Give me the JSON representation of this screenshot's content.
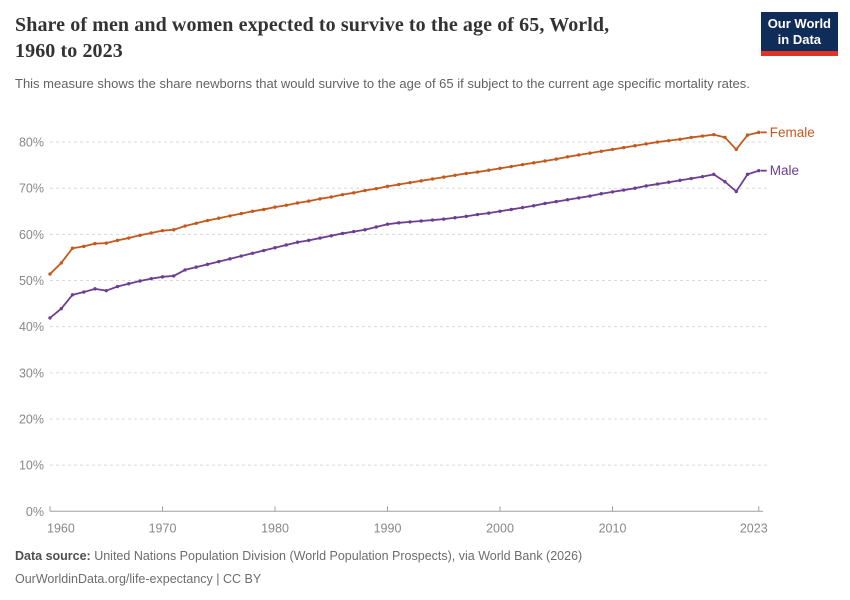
{
  "header": {
    "title_line1": "Share of men and women expected to survive to the age of 65, World,",
    "title_line2": "1960 to 2023",
    "subtitle": "This measure shows the share newborns that would survive to the age of 65 if subject to the current age specific mortality rates.",
    "logo": {
      "line1": "Our World",
      "line2": "in Data",
      "bg_color": "#102d59",
      "stripe_color": "#e03226"
    }
  },
  "footer": {
    "source_label": "Data source:",
    "source_text": " United Nations Population Division (World Population Prospects), via World Bank (2026)",
    "link_text": "OurWorldinData.org/life-expectancy",
    "license_text": " | CC BY"
  },
  "chart_data": {
    "type": "line",
    "title": "Share of men and women expected to survive to the age of 65, World, 1960 to 2023",
    "xlabel": "",
    "ylabel": "",
    "xlim": [
      1960,
      2023
    ],
    "ylim": [
      0,
      80
    ],
    "grid": "horizontal-dashed",
    "legend_position": "end-of-line-labels",
    "xticks": [
      [
        1960,
        "1960"
      ],
      [
        1970,
        "1970"
      ],
      [
        1980,
        "1980"
      ],
      [
        1990,
        "1990"
      ],
      [
        2000,
        "2000"
      ],
      [
        2010,
        "2010"
      ],
      [
        2023,
        "2023"
      ]
    ],
    "yticks": [
      [
        0,
        "0%"
      ],
      [
        10,
        "10%"
      ],
      [
        20,
        "20%"
      ],
      [
        30,
        "30%"
      ],
      [
        40,
        "40%"
      ],
      [
        50,
        "50%"
      ],
      [
        60,
        "60%"
      ],
      [
        70,
        "70%"
      ],
      [
        80,
        "80%"
      ]
    ],
    "x": [
      1960,
      1961,
      1962,
      1963,
      1964,
      1965,
      1966,
      1967,
      1968,
      1969,
      1970,
      1971,
      1972,
      1973,
      1974,
      1975,
      1976,
      1977,
      1978,
      1979,
      1980,
      1981,
      1982,
      1983,
      1984,
      1985,
      1986,
      1987,
      1988,
      1989,
      1990,
      1991,
      1992,
      1993,
      1994,
      1995,
      1996,
      1997,
      1998,
      1999,
      2000,
      2001,
      2002,
      2003,
      2004,
      2005,
      2006,
      2007,
      2008,
      2009,
      2010,
      2011,
      2012,
      2013,
      2014,
      2015,
      2016,
      2017,
      2018,
      2019,
      2020,
      2021,
      2022,
      2023
    ],
    "series": [
      {
        "name": "Female",
        "color": "#c4591d",
        "values": [
          51.4,
          53.8,
          57.0,
          57.4,
          58.0,
          58.1,
          58.7,
          59.2,
          59.8,
          60.3,
          60.8,
          61.0,
          61.8,
          62.4,
          63.0,
          63.5,
          64.0,
          64.5,
          65.0,
          65.4,
          65.9,
          66.3,
          66.8,
          67.2,
          67.7,
          68.1,
          68.6,
          69.0,
          69.5,
          69.9,
          70.4,
          70.8,
          71.2,
          71.6,
          72.0,
          72.4,
          72.8,
          73.2,
          73.5,
          73.9,
          74.3,
          74.7,
          75.1,
          75.5,
          75.9,
          76.3,
          76.8,
          77.2,
          77.6,
          78.0,
          78.4,
          78.8,
          79.2,
          79.6,
          80.0,
          80.3,
          80.6,
          81.0,
          81.3,
          81.6,
          81.0,
          78.4,
          81.5,
          82.1
        ]
      },
      {
        "name": "Male",
        "color": "#6d3e91",
        "values": [
          41.9,
          43.9,
          46.9,
          47.5,
          48.2,
          47.8,
          48.7,
          49.3,
          49.9,
          50.4,
          50.8,
          51.0,
          52.3,
          52.9,
          53.5,
          54.1,
          54.7,
          55.3,
          55.9,
          56.5,
          57.1,
          57.7,
          58.3,
          58.7,
          59.2,
          59.7,
          60.2,
          60.6,
          61.0,
          61.6,
          62.2,
          62.5,
          62.7,
          62.9,
          63.1,
          63.3,
          63.6,
          63.9,
          64.3,
          64.6,
          65.0,
          65.4,
          65.8,
          66.2,
          66.7,
          67.1,
          67.5,
          67.9,
          68.3,
          68.8,
          69.2,
          69.6,
          70.0,
          70.5,
          70.9,
          71.3,
          71.7,
          72.1,
          72.5,
          73.0,
          71.4,
          69.3,
          73.0,
          73.8
        ]
      }
    ]
  }
}
